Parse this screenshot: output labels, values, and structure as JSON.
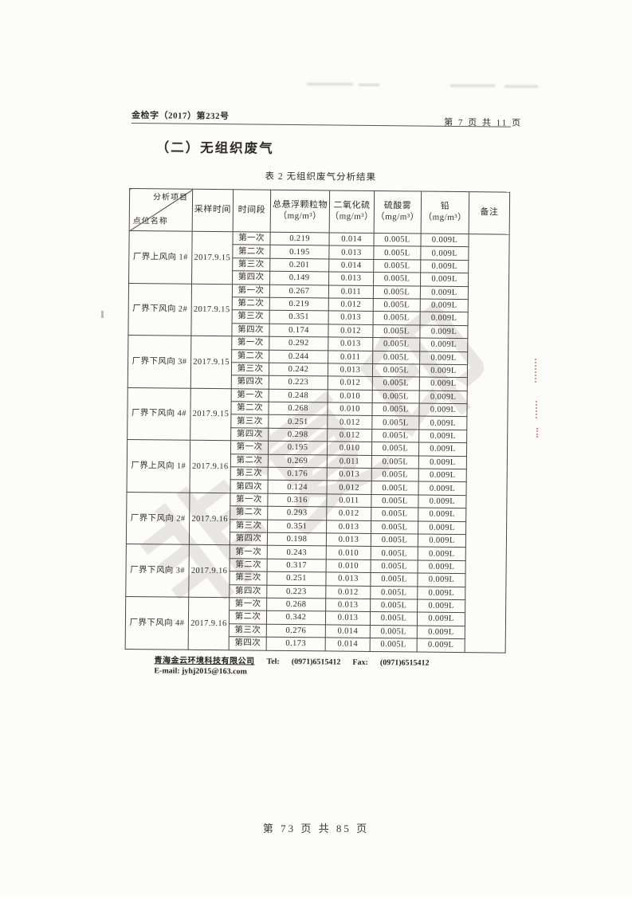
{
  "document": {
    "doc_number": "金检字（2017）第232号",
    "page_indicator": "第 7 页 共 11 页",
    "section_title": "（二）无组织废气",
    "table_caption": "表 2 无组织废气分析结果",
    "watermark_text": "非复印",
    "footer": {
      "company": "青海金云环境科技有限公司",
      "tel_label": "Tel:",
      "tel_number": "(0971)6515412",
      "fax_label": "Fax:",
      "fax_number": "(0971)6515412",
      "email_line": "E-mail: jyhj2015@163.com"
    },
    "page_footer": "第 73 页 共 85 页"
  },
  "table": {
    "header": {
      "diagonal_top": "分析项目",
      "diagonal_bottom": "点位名称",
      "columns": [
        "采样时间",
        "时间段",
        "总悬浮颗粒物（mg/m³）",
        "二氧化硫（mg/m³）",
        "硫酸雾（mg/m³）",
        "铅（mg/m³）",
        "备注"
      ]
    },
    "remark_value": "",
    "groups": [
      {
        "location": "厂界上风向 1#",
        "date": "2017.9.15",
        "rows": [
          {
            "period": "第一次",
            "tsp": "0.219",
            "so2": "0.014",
            "h2so4": "0.005L",
            "pb": "0.009L"
          },
          {
            "period": "第二次",
            "tsp": "0.195",
            "so2": "0.013",
            "h2so4": "0.005L",
            "pb": "0.009L"
          },
          {
            "period": "第三次",
            "tsp": "0.201",
            "so2": "0.014",
            "h2so4": "0.005L",
            "pb": "0.009L"
          },
          {
            "period": "第四次",
            "tsp": "0.149",
            "so2": "0.013",
            "h2so4": "0.005L",
            "pb": "0.009L"
          }
        ]
      },
      {
        "location": "厂界下风向 2#",
        "date": "2017.9.15",
        "rows": [
          {
            "period": "第一次",
            "tsp": "0.267",
            "so2": "0.011",
            "h2so4": "0.005L",
            "pb": "0.009L"
          },
          {
            "period": "第二次",
            "tsp": "0.219",
            "so2": "0.012",
            "h2so4": "0.005L",
            "pb": "0.009L"
          },
          {
            "period": "第三次",
            "tsp": "0.351",
            "so2": "0.013",
            "h2so4": "0.005L",
            "pb": "0.009L"
          },
          {
            "period": "第四次",
            "tsp": "0.174",
            "so2": "0.012",
            "h2so4": "0.005L",
            "pb": "0.009L"
          }
        ]
      },
      {
        "location": "厂界下风向 3#",
        "date": "2017.9.15",
        "rows": [
          {
            "period": "第一次",
            "tsp": "0.292",
            "so2": "0.013",
            "h2so4": "0.005L",
            "pb": "0.009L"
          },
          {
            "period": "第二次",
            "tsp": "0.244",
            "so2": "0.011",
            "h2so4": "0.005L",
            "pb": "0.009L"
          },
          {
            "period": "第三次",
            "tsp": "0.242",
            "so2": "0.013",
            "h2so4": "0.005L",
            "pb": "0.009L"
          },
          {
            "period": "第四次",
            "tsp": "0.223",
            "so2": "0.012",
            "h2so4": "0.005L",
            "pb": "0.009L"
          }
        ]
      },
      {
        "location": "厂界下风向 4#",
        "date": "2017.9.15",
        "rows": [
          {
            "period": "第一次",
            "tsp": "0.248",
            "so2": "0.010",
            "h2so4": "0.005L",
            "pb": "0.009L"
          },
          {
            "period": "第二次",
            "tsp": "0.268",
            "so2": "0.010",
            "h2so4": "0.005L",
            "pb": "0.009L"
          },
          {
            "period": "第三次",
            "tsp": "0.251",
            "so2": "0.012",
            "h2so4": "0.005L",
            "pb": "0.009L"
          },
          {
            "period": "第四次",
            "tsp": "0.298",
            "so2": "0.012",
            "h2so4": "0.005L",
            "pb": "0.009L"
          }
        ]
      },
      {
        "location": "厂界上风向 1#",
        "date": "2017.9.16",
        "rows": [
          {
            "period": "第一次",
            "tsp": "0.195",
            "so2": "0.010",
            "h2so4": "0.005L",
            "pb": "0.009L"
          },
          {
            "period": "第二次",
            "tsp": "0.269",
            "so2": "0.011",
            "h2so4": "0.005L",
            "pb": "0.009L"
          },
          {
            "period": "第三次",
            "tsp": "0.176",
            "so2": "0.013",
            "h2so4": "0.005L",
            "pb": "0.009L"
          },
          {
            "period": "第四次",
            "tsp": "0.124",
            "so2": "0.012",
            "h2so4": "0.005L",
            "pb": "0.009L"
          }
        ]
      },
      {
        "location": "厂界下风向 2#",
        "date": "2017.9.16",
        "rows": [
          {
            "period": "第一次",
            "tsp": "0.316",
            "so2": "0.011",
            "h2so4": "0.005L",
            "pb": "0.009L"
          },
          {
            "period": "第二次",
            "tsp": "0.293",
            "so2": "0.012",
            "h2so4": "0.005L",
            "pb": "0.009L"
          },
          {
            "period": "第三次",
            "tsp": "0.351",
            "so2": "0.013",
            "h2so4": "0.005L",
            "pb": "0.009L"
          },
          {
            "period": "第四次",
            "tsp": "0.198",
            "so2": "0.013",
            "h2so4": "0.005L",
            "pb": "0.009L"
          }
        ]
      },
      {
        "location": "厂界下风向 3#",
        "date": "2017.9.16",
        "rows": [
          {
            "period": "第一次",
            "tsp": "0.243",
            "so2": "0.010",
            "h2so4": "0.005L",
            "pb": "0.009L"
          },
          {
            "period": "第二次",
            "tsp": "0.317",
            "so2": "0.010",
            "h2so4": "0.005L",
            "pb": "0.009L"
          },
          {
            "period": "第三次",
            "tsp": "0.251",
            "so2": "0.013",
            "h2so4": "0.005L",
            "pb": "0.009L"
          },
          {
            "period": "第四次",
            "tsp": "0.223",
            "so2": "0.012",
            "h2so4": "0.005L",
            "pb": "0.009L"
          }
        ]
      },
      {
        "location": "厂界下风向 4#",
        "date": "2017.9.16",
        "rows": [
          {
            "period": "第一次",
            "tsp": "0.268",
            "so2": "0.013",
            "h2so4": "0.005L",
            "pb": "0.009L"
          },
          {
            "period": "第二次",
            "tsp": "0.342",
            "so2": "0.013",
            "h2so4": "0.005L",
            "pb": "0.009L"
          },
          {
            "period": "第三次",
            "tsp": "0.276",
            "so2": "0.014",
            "h2so4": "0.005L",
            "pb": "0.009L"
          },
          {
            "period": "第四次",
            "tsp": "0.173",
            "so2": "0.014",
            "h2so4": "0.005L",
            "pb": "0.009L"
          }
        ]
      }
    ]
  }
}
